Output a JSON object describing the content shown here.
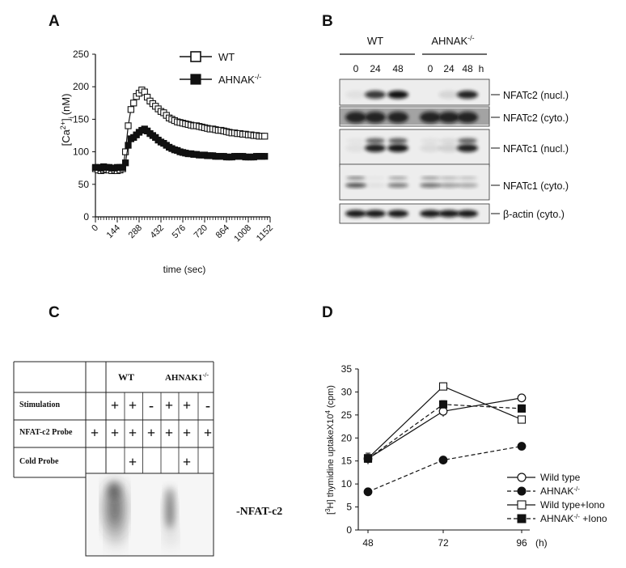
{
  "panels": {
    "A": "A",
    "B": "B",
    "C": "C",
    "D": "D"
  },
  "chart_data": [
    {
      "type": "line",
      "panel": "A",
      "ylabel_main": "[Ca",
      "ylabel_sup": "2+",
      "ylabel_close": "]",
      "ylabel_sub": "i",
      "ylabel_unit": "(nM)",
      "xlabel": "time (sec)",
      "xlim": [
        0,
        1152
      ],
      "ylim": [
        0,
        250
      ],
      "xticks": [
        "0",
        "144",
        "288",
        "432",
        "576",
        "720",
        "864",
        "1008",
        "1152"
      ],
      "yticks": [
        "0",
        "50",
        "100",
        "150",
        "200",
        "250"
      ],
      "legend_wt": "WT",
      "legend_ko_main": "AHNAK",
      "legend_ko_sup": "-/-",
      "legend": "top-right",
      "x": [
        0,
        18,
        36,
        54,
        72,
        90,
        108,
        126,
        144,
        162,
        180,
        198,
        216,
        234,
        252,
        270,
        288,
        306,
        324,
        342,
        360,
        378,
        396,
        414,
        432,
        450,
        468,
        486,
        504,
        522,
        540,
        558,
        576,
        594,
        612,
        630,
        648,
        666,
        684,
        702,
        720,
        738,
        756,
        774,
        792,
        810,
        828,
        846,
        864,
        882,
        900,
        918,
        936,
        954,
        972,
        990,
        1008,
        1026,
        1044,
        1062,
        1080,
        1098,
        1116
      ],
      "series": [
        {
          "name": "WT",
          "values": [
            74,
            72,
            71,
            72,
            73,
            72,
            71,
            72,
            71,
            72,
            74,
            100,
            140,
            165,
            175,
            185,
            190,
            195,
            192,
            184,
            178,
            174,
            170,
            166,
            162,
            160,
            156,
            152,
            150,
            148,
            146,
            145,
            144,
            143,
            142,
            141,
            140,
            140,
            139,
            138,
            137,
            136,
            135,
            135,
            134,
            133,
            133,
            132,
            131,
            130,
            129,
            129,
            128,
            128,
            127,
            127,
            126,
            126,
            125,
            125,
            124,
            124,
            124
          ]
        },
        {
          "name": "AHNAK-/-",
          "values": [
            76,
            76,
            75,
            77,
            76,
            76,
            75,
            75,
            76,
            76,
            76,
            83,
            110,
            120,
            122,
            126,
            130,
            133,
            135,
            132,
            128,
            125,
            122,
            118,
            115,
            113,
            110,
            107,
            105,
            103,
            102,
            100,
            99,
            98,
            97,
            97,
            96,
            96,
            95,
            95,
            95,
            94,
            94,
            94,
            93,
            93,
            93,
            93,
            92,
            92,
            92,
            93,
            93,
            93,
            93,
            92,
            92,
            92,
            92,
            93,
            93,
            93,
            93
          ]
        }
      ]
    },
    {
      "type": "line",
      "panel": "D",
      "ylabel_pre": "[",
      "ylabel_sup": "3",
      "ylabel_main": "H] thymidine uptakeX10",
      "ylabel_sup2": "4",
      "ylabel_unit": " (cpm)",
      "categories": [
        "48",
        "72",
        "96"
      ],
      "xunit": "(h)",
      "ylim": [
        0,
        35
      ],
      "yticks": [
        "0",
        "5",
        "10",
        "15",
        "20",
        "25",
        "30",
        "35"
      ],
      "legend": "bottom-right",
      "series": [
        {
          "name": "Wild type",
          "values": [
            15.5,
            25.8,
            28.7
          ],
          "errors": [
            1.2,
            1.2,
            0.4
          ]
        },
        {
          "name": "AHNAK-/-",
          "values": [
            8.3,
            15.2,
            18.2
          ],
          "errors": [
            0.4,
            0.4,
            0.5
          ]
        },
        {
          "name": "Wild type+Iono",
          "values": [
            15.6,
            31.2,
            24.0
          ],
          "errors": [
            0.8,
            0.8,
            0.8
          ]
        },
        {
          "name": "AHNAK-/- +Iono",
          "values": [
            15.5,
            27.3,
            26.4
          ],
          "errors": [
            0.8,
            0.8,
            0.8
          ]
        }
      ],
      "legend_labels": {
        "wt": "Wild type",
        "ko_main": "AHNAK",
        "ko_sup": "-/-",
        "wt_iono": "Wild type+Iono",
        "ko_iono_main": "AHNAK",
        "ko_iono_sup": "-/-",
        "ko_iono_suffix": " +Iono"
      }
    }
  ],
  "blot": {
    "group_wt": "WT",
    "group_ko_main": "AHNAK",
    "group_ko_sup": "-/-",
    "lanes": [
      "0",
      "24",
      "48",
      "0",
      "24",
      "48"
    ],
    "unit": "h",
    "rows": [
      {
        "label": "NFATc2 (nucl.)"
      },
      {
        "label": "NFATc2 (cyto.)"
      },
      {
        "label": "NFATc1 (nucl.)"
      },
      {
        "label": "NFATc1 (cyto.)"
      },
      {
        "label": "β-actin (cyto.)"
      }
    ]
  },
  "emsa": {
    "group_wt": "WT",
    "group_ko_main": "AHNAK1",
    "group_ko_sup": "-/-",
    "row_labels": [
      "Stimulation",
      "NFAT-c2 Probe",
      "Cold Probe"
    ],
    "stimulation": [
      "",
      "+",
      "+",
      "-",
      "+",
      "+",
      "-"
    ],
    "probe": [
      "+",
      "+",
      "+",
      "+",
      "+",
      "+",
      "+"
    ],
    "cold": [
      "",
      "",
      "+",
      "",
      "",
      "+",
      ""
    ],
    "band_label": "NFAT-c2"
  }
}
